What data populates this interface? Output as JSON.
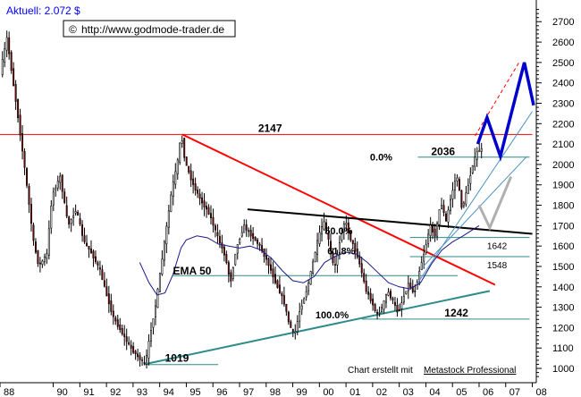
{
  "header": {
    "price_label": "Aktuell: 2.072 $",
    "copyright_symbol": "©",
    "url": "http://www.godmode-trader.de"
  },
  "footer": {
    "credit_prefix": "Chart erstellt mit ",
    "credit_product": "Metastock Professional"
  },
  "colors": {
    "background": "#ffffff",
    "candle_up": "#ffffff",
    "candle_down": "#8b0000",
    "grid": "#000000",
    "resistance_2147": "#ff0000",
    "downtrend": "#ff0000",
    "uptrend": "#2e8b8b",
    "neckline": "#000000",
    "ema": "#1a1a8c",
    "projection_primary": "#0000cc",
    "projection_alt": "#b0b0b0",
    "channel": "#4a90c0",
    "fib_line": "#2e8b8b",
    "title_blue": "#0000ff"
  },
  "chart_data": {
    "type": "candlestick",
    "title": "",
    "xlabel": "",
    "ylabel": "",
    "x_ticks": [
      "88",
      "90",
      "91",
      "92",
      "93",
      "94",
      "95",
      "96",
      "97",
      "98",
      "99",
      "00",
      "01",
      "02",
      "03",
      "04",
      "05",
      "06",
      "07",
      "08"
    ],
    "y_ticks": [
      1000,
      1100,
      1200,
      1300,
      1400,
      1500,
      1600,
      1700,
      1800,
      1900,
      2000,
      2100,
      2200,
      2300,
      2400,
      2500,
      2600,
      2700
    ],
    "ylim": [
      930,
      2780
    ],
    "xlim": [
      1988.0,
      2008.15
    ],
    "y_axis": "right",
    "grid": false,
    "price_path": [
      [
        1988.05,
        2450
      ],
      [
        1988.3,
        2620
      ],
      [
        1988.7,
        2250
      ],
      [
        1989.0,
        1950
      ],
      [
        1989.3,
        1620
      ],
      [
        1989.5,
        1500
      ],
      [
        1989.8,
        1560
      ],
      [
        1990.0,
        1850
      ],
      [
        1990.3,
        1940
      ],
      [
        1990.6,
        1700
      ],
      [
        1990.9,
        1780
      ],
      [
        1991.2,
        1620
      ],
      [
        1991.5,
        1560
      ],
      [
        1991.8,
        1480
      ],
      [
        1992.0,
        1380
      ],
      [
        1992.3,
        1250
      ],
      [
        1992.6,
        1180
      ],
      [
        1992.9,
        1110
      ],
      [
        1993.2,
        1060
      ],
      [
        1993.5,
        1020
      ],
      [
        1993.7,
        1180
      ],
      [
        1993.9,
        1320
      ],
      [
        1994.2,
        1600
      ],
      [
        1994.5,
        1880
      ],
      [
        1994.7,
        2000
      ],
      [
        1994.85,
        2150
      ],
      [
        1995.0,
        2010
      ],
      [
        1995.3,
        1900
      ],
      [
        1995.6,
        1820
      ],
      [
        1995.9,
        1760
      ],
      [
        1996.2,
        1650
      ],
      [
        1996.5,
        1550
      ],
      [
        1996.7,
        1420
      ],
      [
        1996.9,
        1580
      ],
      [
        1997.2,
        1700
      ],
      [
        1997.5,
        1650
      ],
      [
        1997.8,
        1600
      ],
      [
        1998.1,
        1520
      ],
      [
        1998.4,
        1420
      ],
      [
        1998.7,
        1330
      ],
      [
        1998.9,
        1220
      ],
      [
        1999.1,
        1160
      ],
      [
        1999.3,
        1280
      ],
      [
        1999.6,
        1400
      ],
      [
        1999.8,
        1520
      ],
      [
        2000.0,
        1640
      ],
      [
        2000.2,
        1720
      ],
      [
        2000.4,
        1620
      ],
      [
        2000.6,
        1480
      ],
      [
        2000.8,
        1620
      ],
      [
        2001.0,
        1730
      ],
      [
        2001.2,
        1640
      ],
      [
        2001.5,
        1540
      ],
      [
        2001.8,
        1380
      ],
      [
        2002.0,
        1330
      ],
      [
        2002.2,
        1260
      ],
      [
        2002.4,
        1300
      ],
      [
        2002.6,
        1380
      ],
      [
        2002.8,
        1330
      ],
      [
        2003.0,
        1270
      ],
      [
        2003.2,
        1350
      ],
      [
        2003.4,
        1420
      ],
      [
        2003.6,
        1360
      ],
      [
        2003.8,
        1480
      ],
      [
        2004.0,
        1580
      ],
      [
        2004.2,
        1700
      ],
      [
        2004.4,
        1650
      ],
      [
        2004.6,
        1820
      ],
      [
        2004.8,
        1720
      ],
      [
        2005.0,
        1850
      ],
      [
        2005.2,
        1950
      ],
      [
        2005.4,
        1780
      ],
      [
        2005.6,
        1880
      ],
      [
        2005.8,
        2000
      ],
      [
        2006.0,
        2070
      ],
      [
        2006.05,
        2072
      ]
    ],
    "ema_path": [
      [
        1993.25,
        1520
      ],
      [
        1993.6,
        1420
      ],
      [
        1993.9,
        1360
      ],
      [
        1994.2,
        1370
      ],
      [
        1994.5,
        1460
      ],
      [
        1994.8,
        1590
      ],
      [
        1995.0,
        1630
      ],
      [
        1995.4,
        1650
      ],
      [
        1995.8,
        1640
      ],
      [
        1996.2,
        1610
      ],
      [
        1996.6,
        1600
      ],
      [
        1997.0,
        1590
      ],
      [
        1997.4,
        1600
      ],
      [
        1997.8,
        1580
      ],
      [
        1998.2,
        1540
      ],
      [
        1998.6,
        1480
      ],
      [
        1999.0,
        1430
      ],
      [
        1999.4,
        1420
      ],
      [
        1999.8,
        1450
      ],
      [
        2000.2,
        1520
      ],
      [
        2000.6,
        1550
      ],
      [
        2001.0,
        1570
      ],
      [
        2001.4,
        1560
      ],
      [
        2001.8,
        1520
      ],
      [
        2002.2,
        1470
      ],
      [
        2002.6,
        1420
      ],
      [
        2003.0,
        1400
      ],
      [
        2003.4,
        1390
      ],
      [
        2003.8,
        1420
      ],
      [
        2004.2,
        1510
      ],
      [
        2004.6,
        1580
      ],
      [
        2005.0,
        1620
      ],
      [
        2005.4,
        1650
      ],
      [
        2006.0,
        1700
      ]
    ],
    "lines": [
      {
        "name": "resistance",
        "label": "2147",
        "points": [
          [
            1988.0,
            2147
          ],
          [
            2008.0,
            2147
          ]
        ]
      },
      {
        "name": "downtrend",
        "points": [
          [
            1994.85,
            2147
          ],
          [
            2006.6,
            1410
          ]
        ]
      },
      {
        "name": "uptrend",
        "points": [
          [
            1993.4,
            1020
          ],
          [
            2006.4,
            1380
          ]
        ]
      },
      {
        "name": "neckline",
        "points": [
          [
            1997.3,
            1780
          ],
          [
            2008.0,
            1660
          ]
        ]
      },
      {
        "name": "ema-label-line",
        "points": [
          [
            1994.5,
            1455
          ],
          [
            2005.2,
            1455
          ]
        ]
      }
    ],
    "levels": [
      {
        "name": "fib-0",
        "label": "0.0%",
        "value_label": "2036",
        "value": 2036,
        "x_start": 2003.7,
        "x_end": 2007.9
      },
      {
        "name": "level-1642",
        "value_label": "1642",
        "value": 1642,
        "x_start": 2003.4,
        "x_end": 2007.9
      },
      {
        "name": "level-1548",
        "value_label": "1548",
        "value": 1548,
        "x_start": 2003.4,
        "x_end": 2007.9
      },
      {
        "name": "fib-100",
        "label": "100.0%",
        "value_label": "1242",
        "value": 1242,
        "x_start": 2001.6,
        "x_end": 2007.9
      },
      {
        "name": "level-1019",
        "value_label": "1019",
        "value": 1019,
        "x_start": 1993.4,
        "x_end": 1996.2
      }
    ],
    "fib_labels": [
      {
        "label": "50.0%",
        "x": 2000.2,
        "y": 1658
      },
      {
        "label": "61.8%",
        "x": 2000.3,
        "y": 1558
      }
    ],
    "annotations": [
      {
        "text": "EMA 50",
        "x": 1994.5,
        "y": 1460
      }
    ],
    "projection_primary": [
      [
        2005.95,
        2100
      ],
      [
        2006.3,
        2230
      ],
      [
        2006.8,
        2040
      ],
      [
        2007.7,
        2500
      ],
      [
        2008.05,
        2290
      ]
    ],
    "projection_alt": [
      [
        2006.0,
        1800
      ],
      [
        2006.4,
        1690
      ],
      [
        2007.2,
        1940
      ]
    ],
    "projection_dashed": [
      [
        2005.85,
        2140
      ],
      [
        2007.5,
        2500
      ]
    ],
    "channel_lines": [
      [
        [
          2003.7,
          1420
        ],
        [
          2008.0,
          2260
        ]
      ],
      [
        [
          2003.9,
          1500
        ],
        [
          2007.8,
          2040
        ]
      ]
    ]
  }
}
